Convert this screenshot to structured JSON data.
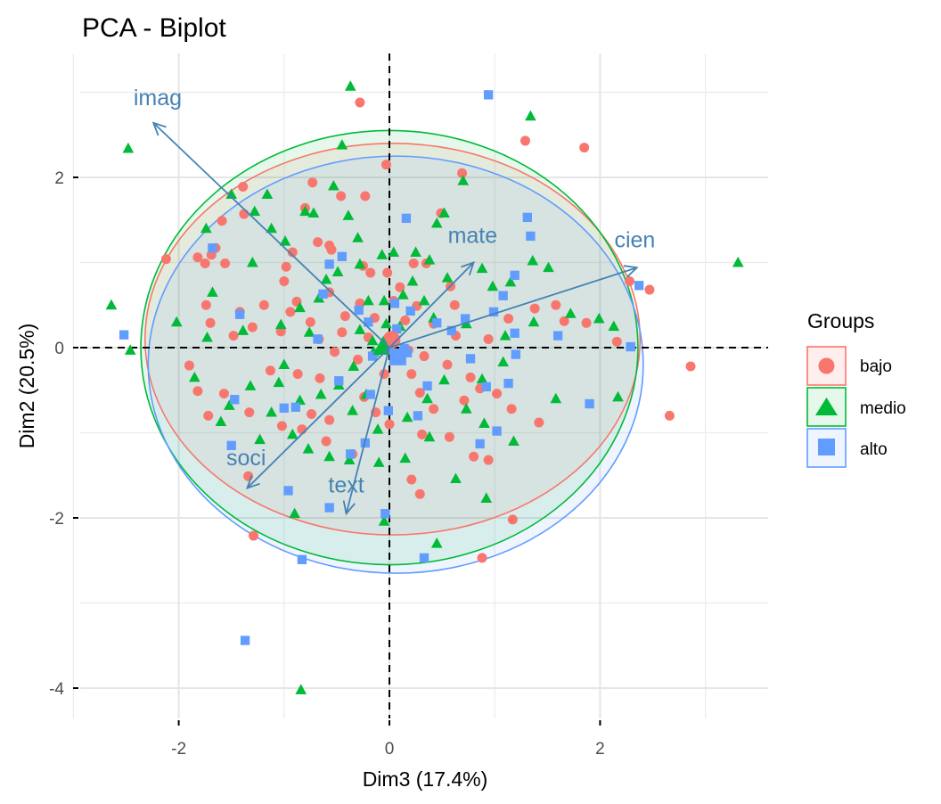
{
  "chart_data": {
    "type": "scatter",
    "subtype": "pca-biplot",
    "title": "PCA - Biplot",
    "xlabel": "Dim3 (17.4%)",
    "ylabel": "Dim2 (20.5%)",
    "xlim": [
      -2.95,
      3.6
    ],
    "ylim": [
      -4.3,
      3.5
    ],
    "x_ticks": [
      -2,
      0,
      2
    ],
    "y_ticks": [
      -4,
      -2,
      0,
      2
    ],
    "x_tick_labels": [
      "-2",
      "0",
      "2"
    ],
    "y_tick_labels": [
      "-4",
      "-2",
      "0",
      "2"
    ],
    "x_minor_gridlines": [
      -3,
      -1,
      1,
      3
    ],
    "y_minor_gridlines": [
      -3,
      -1,
      1,
      3
    ],
    "grid": true,
    "reference_lines": {
      "x": 0,
      "y": 0,
      "style": "dashed",
      "color": "#000000"
    },
    "legend": {
      "title": "Groups",
      "position": "right",
      "entries": [
        {
          "label": "bajo",
          "shape": "circle",
          "color": "#f8766d"
        },
        {
          "label": "medio",
          "shape": "triangle",
          "color": "#00ba38"
        },
        {
          "label": "alto",
          "shape": "square",
          "color": "#619cff"
        }
      ]
    },
    "variables": [
      {
        "name": "imag",
        "x": -2.24,
        "y": 2.64,
        "label_x": -2.2,
        "label_y": 2.85
      },
      {
        "name": "mate",
        "x": 0.8,
        "y": 1.0,
        "label_x": 0.79,
        "label_y": 1.23
      },
      {
        "name": "cien",
        "x": 2.35,
        "y": 0.94,
        "label_x": 2.33,
        "label_y": 1.18
      },
      {
        "name": "soci",
        "x": -1.35,
        "y": -1.65,
        "label_x": -1.36,
        "label_y": -1.38
      },
      {
        "name": "text",
        "x": -0.41,
        "y": -1.95,
        "label_x": -0.41,
        "label_y": -1.7
      }
    ],
    "variable_color": "#4682b4",
    "group_centroids": [
      {
        "group": "bajo",
        "x": 0.02,
        "y": 0.09
      },
      {
        "group": "medio",
        "x": -0.06,
        "y": 0.01
      },
      {
        "group": "alto",
        "x": 0.08,
        "y": -0.11
      }
    ],
    "ellipses": [
      {
        "group": "bajo",
        "cx": 0.03,
        "cy": 0.1,
        "rx": 2.35,
        "ry": 2.3,
        "color": "#f8766d"
      },
      {
        "group": "medio",
        "cx": 0.0,
        "cy": 0.0,
        "rx": 2.36,
        "ry": 2.55,
        "color": "#00ba38"
      },
      {
        "group": "alto",
        "cx": 0.06,
        "cy": -0.2,
        "rx": 2.35,
        "ry": 2.45,
        "color": "#619cff"
      }
    ],
    "series": [
      {
        "name": "bajo",
        "shape": "circle",
        "color": "#f8766d",
        "points": [
          [
            -0.28,
            2.88
          ],
          [
            1.29,
            2.43
          ],
          [
            1.85,
            2.35
          ],
          [
            -0.03,
            2.15
          ],
          [
            0.69,
            2.05
          ],
          [
            -0.73,
            1.94
          ],
          [
            -0.23,
            1.78
          ],
          [
            -0.46,
            1.78
          ],
          [
            0.49,
            1.58
          ],
          [
            -1.39,
            1.89
          ],
          [
            -1.59,
            1.49
          ],
          [
            -1.38,
            1.57
          ],
          [
            -0.8,
            1.64
          ],
          [
            -0.68,
            1.24
          ],
          [
            -0.57,
            1.2
          ],
          [
            -0.92,
            1.12
          ],
          [
            -0.55,
            1.15
          ],
          [
            -0.25,
            0.96
          ],
          [
            -0.18,
            0.88
          ],
          [
            -0.02,
            0.88
          ],
          [
            0.23,
            0.99
          ],
          [
            0.35,
            0.99
          ],
          [
            0.1,
            0.71
          ],
          [
            0.26,
            0.49
          ],
          [
            0.58,
            0.72
          ],
          [
            0.62,
            0.5
          ],
          [
            -1.69,
            1.09
          ],
          [
            -1.82,
            1.06
          ],
          [
            -1.75,
            0.99
          ],
          [
            -1.56,
            0.99
          ],
          [
            -2.12,
            1.04
          ],
          [
            -1.65,
            1.17
          ],
          [
            -0.98,
            0.95
          ],
          [
            -1.0,
            0.78
          ],
          [
            -0.57,
            0.65
          ],
          [
            -0.28,
            0.52
          ],
          [
            -0.42,
            0.37
          ],
          [
            -0.88,
            0.54
          ],
          [
            -0.94,
            0.42
          ],
          [
            -1.19,
            0.5
          ],
          [
            -1.42,
            0.42
          ],
          [
            -1.74,
            0.5
          ],
          [
            -1.7,
            0.29
          ],
          [
            -1.3,
            0.24
          ],
          [
            -1.48,
            0.14
          ],
          [
            -1.03,
            0.19
          ],
          [
            -0.75,
            0.3
          ],
          [
            -0.67,
            0.1
          ],
          [
            -0.52,
            -0.05
          ],
          [
            -0.3,
            -0.14
          ],
          [
            0.21,
            -0.31
          ],
          [
            0.33,
            -0.1
          ],
          [
            0.55,
            -0.2
          ],
          [
            0.77,
            -0.35
          ],
          [
            0.86,
            -0.48
          ],
          [
            0.94,
            0.1
          ],
          [
            1.13,
            0.34
          ],
          [
            1.38,
            0.46
          ],
          [
            1.58,
            0.5
          ],
          [
            1.66,
            0.31
          ],
          [
            1.87,
            0.29
          ],
          [
            2.28,
            0.78
          ],
          [
            2.47,
            0.68
          ],
          [
            2.16,
            0.07
          ],
          [
            2.86,
            -0.22
          ],
          [
            2.66,
            -0.8
          ],
          [
            1.42,
            -0.88
          ],
          [
            1.16,
            -0.72
          ],
          [
            1.02,
            -0.54
          ],
          [
            0.94,
            -1.32
          ],
          [
            0.8,
            -1.28
          ],
          [
            0.57,
            -1.05
          ],
          [
            0.42,
            -0.72
          ],
          [
            0.29,
            -0.53
          ],
          [
            -0.05,
            -0.31
          ],
          [
            0.18,
            -0.03
          ],
          [
            -0.13,
            -0.76
          ],
          [
            -0.24,
            -0.58
          ],
          [
            -0.57,
            -0.85
          ],
          [
            -0.74,
            -0.78
          ],
          [
            -0.83,
            -0.96
          ],
          [
            -1.02,
            -0.92
          ],
          [
            -1.33,
            -0.76
          ],
          [
            -1.57,
            -0.54
          ],
          [
            -1.9,
            -0.21
          ],
          [
            -1.82,
            -0.51
          ],
          [
            -1.72,
            -0.8
          ],
          [
            -1.13,
            -0.27
          ],
          [
            -0.87,
            -0.31
          ],
          [
            -0.66,
            -0.36
          ],
          [
            -1.34,
            -1.51
          ],
          [
            -1.29,
            -2.21
          ],
          [
            0.31,
            -1.02
          ],
          [
            0.0,
            -0.9
          ],
          [
            0.21,
            -1.55
          ],
          [
            0.29,
            -1.72
          ],
          [
            0.88,
            -2.47
          ],
          [
            1.17,
            -2.02
          ],
          [
            -0.35,
            -1.25
          ],
          [
            -0.6,
            -1.1
          ],
          [
            0.15,
            0.32
          ],
          [
            0.04,
            0.55
          ],
          [
            -0.14,
            0.35
          ],
          [
            -0.45,
            0.18
          ],
          [
            -0.2,
            0.12
          ],
          [
            0.42,
            0.28
          ],
          [
            0.63,
            0.14
          ],
          [
            0.71,
            -0.62
          ]
        ]
      },
      {
        "name": "medio",
        "shape": "triangle",
        "color": "#00ba38",
        "points": [
          [
            -0.37,
            3.07
          ],
          [
            1.34,
            2.72
          ],
          [
            -2.48,
            2.34
          ],
          [
            -0.45,
            2.38
          ],
          [
            0.7,
            1.96
          ],
          [
            -0.53,
            1.9
          ],
          [
            -1.5,
            1.8
          ],
          [
            -1.16,
            1.8
          ],
          [
            -1.28,
            1.6
          ],
          [
            -0.8,
            1.6
          ],
          [
            -0.72,
            1.58
          ],
          [
            -0.39,
            1.55
          ],
          [
            0.52,
            1.58
          ],
          [
            -1.74,
            1.4
          ],
          [
            -1.12,
            1.4
          ],
          [
            -0.99,
            1.25
          ],
          [
            -0.3,
            1.29
          ],
          [
            0.45,
            1.46
          ],
          [
            -1.68,
            0.65
          ],
          [
            -2.64,
            0.5
          ],
          [
            -2.02,
            0.3
          ],
          [
            -2.46,
            -0.03
          ],
          [
            -1.85,
            -0.35
          ],
          [
            -1.73,
            0.12
          ],
          [
            -1.39,
            0.2
          ],
          [
            -1.03,
            0.27
          ],
          [
            -0.85,
            0.47
          ],
          [
            -0.67,
            0.58
          ],
          [
            -0.49,
            0.89
          ],
          [
            -0.28,
            0.98
          ],
          [
            -0.07,
            1.09
          ],
          [
            0.04,
            1.12
          ],
          [
            0.25,
            1.12
          ],
          [
            0.38,
            1.03
          ],
          [
            0.88,
            0.93
          ],
          [
            0.98,
            0.72
          ],
          [
            1.15,
            0.77
          ],
          [
            1.36,
            1.02
          ],
          [
            1.51,
            0.94
          ],
          [
            1.72,
            0.4
          ],
          [
            1.99,
            0.34
          ],
          [
            2.13,
            0.25
          ],
          [
            3.31,
            1.0
          ],
          [
            1.37,
            0.3
          ],
          [
            1.1,
            0.14
          ],
          [
            0.73,
            0.28
          ],
          [
            0.42,
            0.35
          ],
          [
            0.13,
            0.62
          ],
          [
            -0.03,
            0.28
          ],
          [
            0.1,
            0.25
          ],
          [
            0.33,
            0.55
          ],
          [
            -0.16,
            0.08
          ],
          [
            -0.28,
            0.21
          ],
          [
            -0.76,
            0.18
          ],
          [
            -1.05,
            -0.41
          ],
          [
            -1.12,
            -0.76
          ],
          [
            -1.32,
            -0.45
          ],
          [
            -1.52,
            -0.68
          ],
          [
            -1.6,
            -0.87
          ],
          [
            -1.23,
            -1.08
          ],
          [
            -0.92,
            -1.02
          ],
          [
            -0.77,
            -1.19
          ],
          [
            -0.57,
            -1.28
          ],
          [
            -0.35,
            -0.74
          ],
          [
            -0.22,
            -0.55
          ],
          [
            -0.11,
            -0.96
          ],
          [
            0.17,
            -0.82
          ],
          [
            0.52,
            -0.38
          ],
          [
            0.73,
            -0.72
          ],
          [
            0.9,
            -0.89
          ],
          [
            1.18,
            -1.1
          ],
          [
            1.58,
            -0.6
          ],
          [
            2.17,
            -0.58
          ],
          [
            1.08,
            -0.17
          ],
          [
            0.88,
            -0.37
          ],
          [
            0.38,
            -1.05
          ],
          [
            0.15,
            -1.3
          ],
          [
            -0.1,
            -1.35
          ],
          [
            -0.9,
            -1.95
          ],
          [
            -0.38,
            -1.32
          ],
          [
            0.45,
            -2.3
          ],
          [
            0.92,
            -1.77
          ],
          [
            0.63,
            -1.54
          ],
          [
            -0.05,
            -2.04
          ],
          [
            -0.84,
            -4.02
          ],
          [
            -0.48,
            -0.44
          ],
          [
            -0.65,
            -0.55
          ],
          [
            -0.85,
            -0.62
          ],
          [
            -0.34,
            -0.22
          ],
          [
            -0.05,
            0.55
          ],
          [
            0.22,
            0.78
          ],
          [
            0.55,
            0.82
          ],
          [
            -1.0,
            -0.2
          ],
          [
            -0.6,
            0.8
          ],
          [
            -0.2,
            0.55
          ],
          [
            0.36,
            -0.6
          ],
          [
            -1.3,
            1.0
          ],
          [
            -0.15,
            -0.05
          ]
        ]
      },
      {
        "name": "alto",
        "shape": "square",
        "color": "#619cff",
        "points": [
          [
            0.94,
            2.97
          ],
          [
            -1.68,
            1.17
          ],
          [
            0.16,
            1.52
          ],
          [
            1.31,
            1.53
          ],
          [
            1.34,
            1.31
          ],
          [
            -0.57,
            0.98
          ],
          [
            -0.45,
            1.07
          ],
          [
            -0.63,
            0.63
          ],
          [
            0.05,
            0.52
          ],
          [
            0.72,
            0.34
          ],
          [
            1.08,
            0.61
          ],
          [
            1.19,
            0.85
          ],
          [
            0.99,
            0.42
          ],
          [
            2.37,
            0.73
          ],
          [
            -1.42,
            0.39
          ],
          [
            -2.52,
            0.15
          ],
          [
            -0.68,
            0.1
          ],
          [
            -0.2,
            0.3
          ],
          [
            0.2,
            0.43
          ],
          [
            0.45,
            0.29
          ],
          [
            0.59,
            0.2
          ],
          [
            0.14,
            -0.01
          ],
          [
            0.77,
            -0.13
          ],
          [
            1.19,
            0.17
          ],
          [
            1.6,
            0.14
          ],
          [
            2.29,
            0.01
          ],
          [
            1.2,
            -0.08
          ],
          [
            1.13,
            -0.42
          ],
          [
            0.92,
            -0.46
          ],
          [
            0.36,
            -0.45
          ],
          [
            -0.18,
            -0.55
          ],
          [
            -0.48,
            -0.39
          ],
          [
            -0.89,
            -0.7
          ],
          [
            -1.0,
            -0.71
          ],
          [
            -1.47,
            -0.61
          ],
          [
            -1.5,
            -1.15
          ],
          [
            -0.96,
            -1.68
          ],
          [
            -0.57,
            -1.88
          ],
          [
            -0.04,
            -1.95
          ],
          [
            0.33,
            -2.47
          ],
          [
            -0.83,
            -2.49
          ],
          [
            -1.37,
            -3.44
          ],
          [
            0.86,
            -1.13
          ],
          [
            1.02,
            -0.98
          ],
          [
            1.9,
            -0.66
          ],
          [
            0.27,
            -0.8
          ],
          [
            -0.01,
            -0.74
          ],
          [
            -0.23,
            -1.12
          ],
          [
            -0.37,
            -1.25
          ],
          [
            0.07,
            -0.13
          ],
          [
            0.17,
            -0.06
          ],
          [
            -0.16,
            -0.1
          ],
          [
            0.07,
            0.22
          ],
          [
            -0.29,
            0.44
          ]
        ]
      }
    ]
  }
}
